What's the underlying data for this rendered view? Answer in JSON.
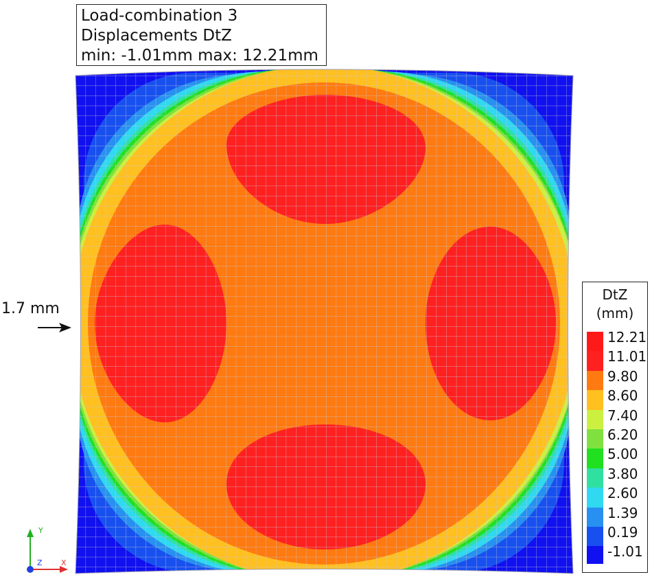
{
  "title": {
    "line1": "Load-combination 3",
    "line2": "Displacements DtZ",
    "line3": "min: -1.01mm max: 12.21mm"
  },
  "legend": {
    "title_line1": "DtZ",
    "title_line2": "(mm)",
    "levels": [
      {
        "label": "12.21",
        "color": "#ff1a1a"
      },
      {
        "label": "11.01",
        "color": "#ff2020"
      },
      {
        "label": "9.80",
        "color": "#ff7a10"
      },
      {
        "label": "8.60",
        "color": "#ffc020"
      },
      {
        "label": "7.40",
        "color": "#ccf040"
      },
      {
        "label": "6.20",
        "color": "#80e040"
      },
      {
        "label": "5.00",
        "color": "#20e020"
      },
      {
        "label": "3.80",
        "color": "#30e0a0"
      },
      {
        "label": "2.60",
        "color": "#30d8f0"
      },
      {
        "label": "1.39",
        "color": "#2890f0"
      },
      {
        "label": "0.19",
        "color": "#1850f0"
      },
      {
        "label": "-1.01",
        "color": "#1010f0"
      }
    ]
  },
  "annotation": {
    "label": "1.7 mm"
  },
  "axes_triad": {
    "x_label": "X",
    "y_label": "Y",
    "z_label": "Z",
    "x_color": "#e03030",
    "y_color": "#20b020",
    "z_color": "#2040e0"
  },
  "contour_colors": {
    "blue": "#1010f0",
    "mid_blue": "#1850f0",
    "light_blue": "#2890f0",
    "cyan": "#30d8f0",
    "aqua": "#30e0a0",
    "green": "#20e020",
    "light_green": "#80e040",
    "yellow_green": "#ccf040",
    "yellow": "#ffc020",
    "orange": "#ff7a10",
    "red": "#ff2020",
    "mesh": "#c8c8d8"
  }
}
